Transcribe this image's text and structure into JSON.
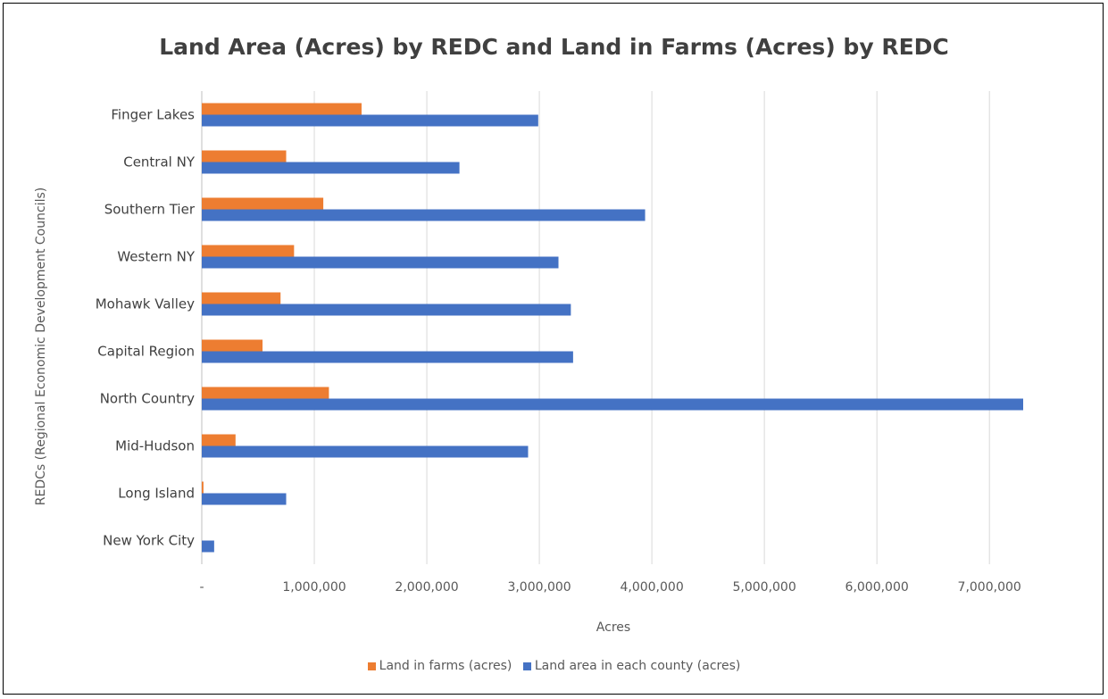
{
  "chart_data": {
    "type": "bar",
    "orientation": "horizontal",
    "title": "Land Area (Acres) by REDC and Land in Farms (Acres) by REDC",
    "xlabel": "Acres",
    "ylabel": "REDCs (Regional Economic Development Councils)",
    "categories": [
      "Finger Lakes",
      "Central NY",
      "Southern Tier",
      "Western NY",
      "Mohawk Valley",
      "Capital Region",
      "North Country",
      "Mid-Hudson",
      "Long Island",
      "New York City"
    ],
    "series": [
      {
        "name": "Land in farms (acres)",
        "color": "#ED7D31",
        "values": [
          1420000,
          750000,
          1080000,
          820000,
          700000,
          540000,
          1130000,
          300000,
          15000,
          0
        ]
      },
      {
        "name": "Land area in each county (acres)",
        "color": "#4472C4",
        "values": [
          2990000,
          2290000,
          3940000,
          3170000,
          3280000,
          3300000,
          7300000,
          2900000,
          750000,
          110000
        ]
      }
    ],
    "xlim": [
      0,
      7300000
    ],
    "xticks": [
      0,
      1000000,
      2000000,
      3000000,
      4000000,
      5000000,
      6000000,
      7000000
    ],
    "xtick_labels": [
      "-",
      "1,000,000",
      "2,000,000",
      "3,000,000",
      "4,000,000",
      "5,000,000",
      "6,000,000",
      "7,000,000"
    ],
    "grid": "vertical",
    "legend_position": "bottom"
  }
}
